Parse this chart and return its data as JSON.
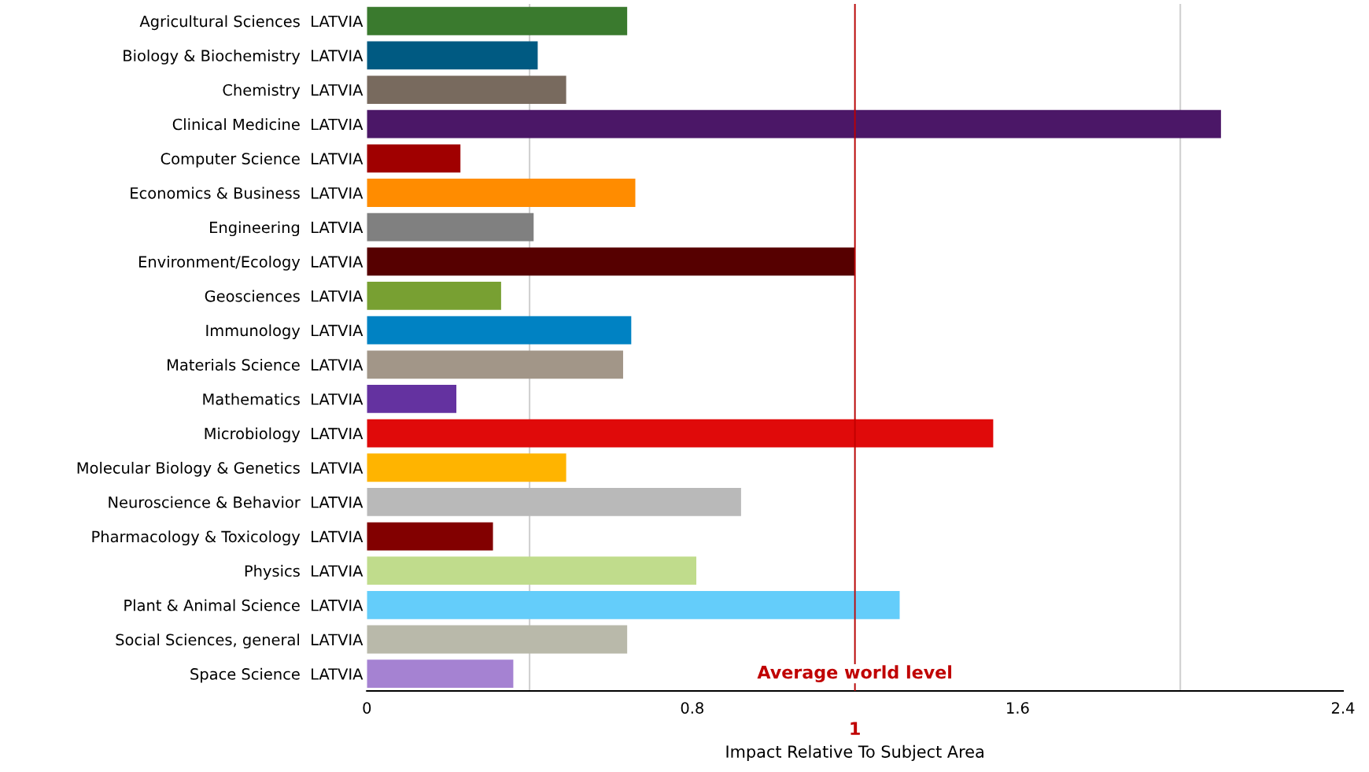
{
  "chart_data": {
    "type": "bar",
    "orientation": "horizontal",
    "xlabel": "Impact Relative To Subject Area",
    "categories": [
      "Agricultural Sciences  LATVIA",
      "Biology & Biochemistry  LATVIA",
      "Chemistry  LATVIA",
      "Clinical Medicine  LATVIA",
      "Computer Science  LATVIA",
      "Economics & Business  LATVIA",
      "Engineering  LATVIA",
      "Environment/Ecology  LATVIA",
      "Geosciences  LATVIA",
      "Immunology  LATVIA",
      "Materials Science  LATVIA",
      "Mathematics  LATVIA",
      "Microbiology  LATVIA",
      "Molecular Biology & Genetics  LATVIA",
      "Neuroscience & Behavior  LATVIA",
      "Pharmacology & Toxicology  LATVIA",
      "Physics  LATVIA",
      "Plant & Animal Science  LATVIA",
      "Social Sciences, general  LATVIA",
      "Space Science  LATVIA"
    ],
    "values": [
      0.64,
      0.42,
      0.49,
      2.1,
      0.23,
      0.66,
      0.41,
      1.2,
      0.33,
      0.65,
      0.63,
      0.22,
      1.54,
      0.49,
      0.92,
      0.31,
      0.81,
      1.31,
      0.64,
      0.36
    ],
    "colors": [
      "#3a7a2e",
      "#005a82",
      "#786a5e",
      "#4b1767",
      "#a00000",
      "#ff8c00",
      "#808080",
      "#560000",
      "#78a032",
      "#0082c3",
      "#a29688",
      "#6432a0",
      "#e00a0a",
      "#ffb400",
      "#b9b9b9",
      "#820000",
      "#c0dc8c",
      "#64cdfa",
      "#b9b9aa",
      "#a582d2"
    ],
    "xlim": [
      0,
      2.4
    ],
    "xticks": [
      0,
      {
        "value": 0.4,
        "label": null
      },
      0.8,
      {
        "value": 1.2,
        "label": null
      },
      1.6,
      {
        "value": 2.0,
        "label": null
      },
      2.4
    ],
    "grid": "x",
    "ref_lines": [
      {
        "axis": "x",
        "value": 1.2,
        "label": "Average world level",
        "color": "#c00000"
      }
    ],
    "annotations": [
      "1"
    ]
  }
}
